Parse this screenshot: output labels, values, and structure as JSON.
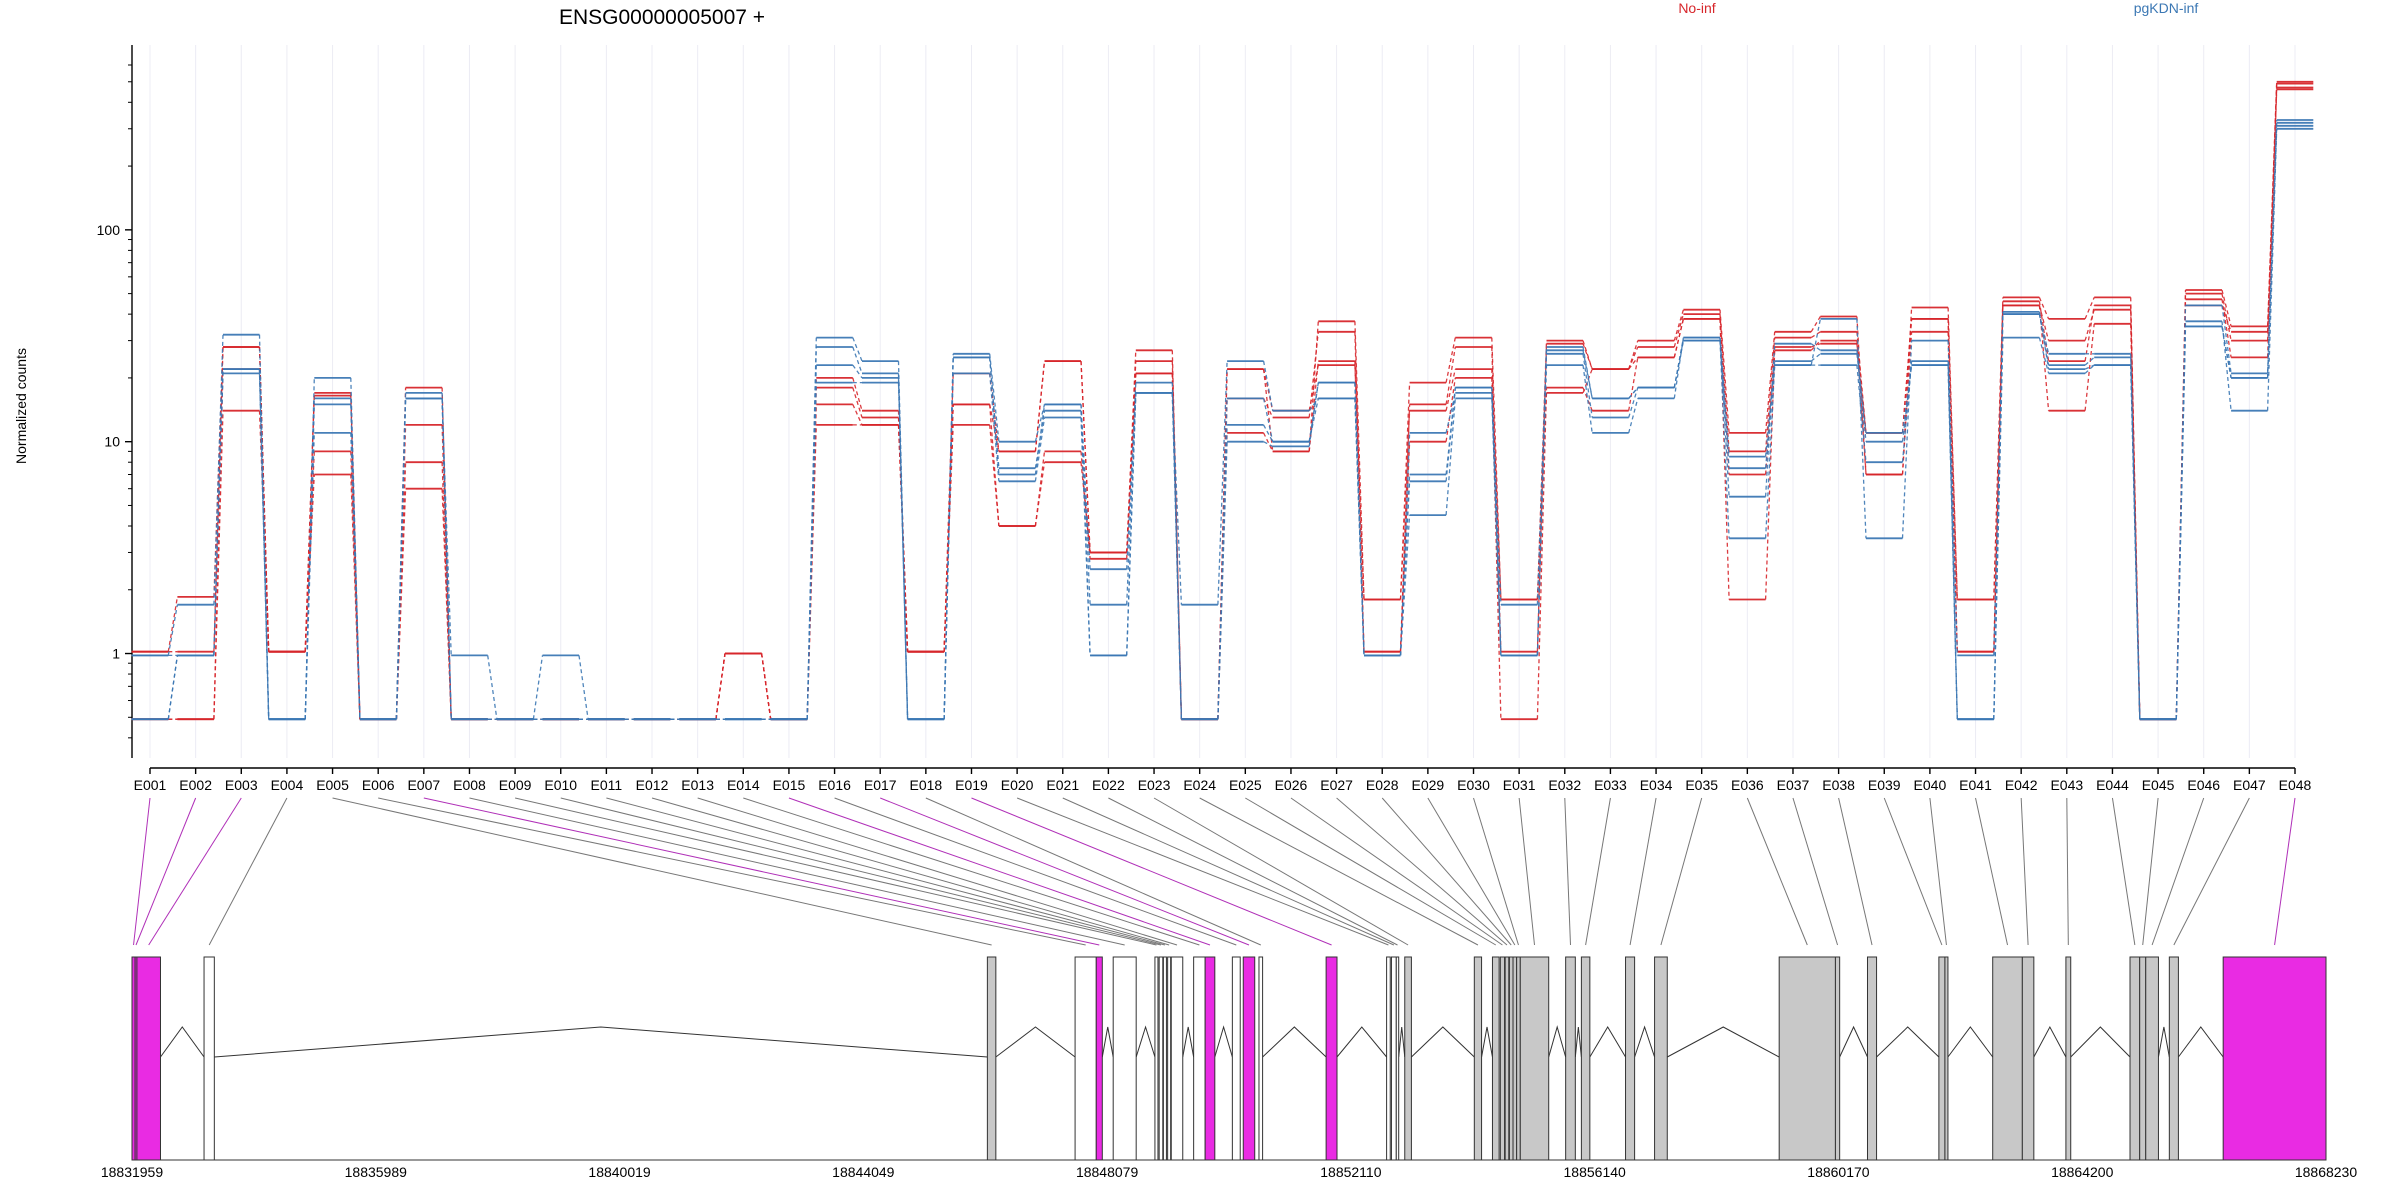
{
  "chart_data": {
    "type": "line",
    "title": "ENSG00000005007 +",
    "ylabel": "Normalized counts",
    "xlabel": "",
    "y_scale": "log",
    "y_ticks": [
      {
        "value": 1,
        "label": "1"
      },
      {
        "value": 10,
        "label": "10"
      },
      {
        "value": 100,
        "label": "100"
      }
    ],
    "ylim": [
      0.37,
      600
    ],
    "categories": [
      "E001",
      "E002",
      "E003",
      "E004",
      "E005",
      "E006",
      "E007",
      "E008",
      "E009",
      "E010",
      "E011",
      "E012",
      "E013",
      "E014",
      "E015",
      "E016",
      "E017",
      "E018",
      "E019",
      "E020",
      "E021",
      "E022",
      "E023",
      "E024",
      "E025",
      "E026",
      "E027",
      "E028",
      "E029",
      "E030",
      "E031",
      "E032",
      "E033",
      "E034",
      "E035",
      "E036",
      "E037",
      "E038",
      "E039",
      "E040",
      "E041",
      "E042",
      "E043",
      "E044",
      "E045",
      "E046",
      "E047",
      "E048"
    ],
    "zero_value": 0.49,
    "grid": true,
    "legend_position": "top",
    "series": [
      {
        "name": "No-inf",
        "group": "No-inf",
        "color": "#d7262b",
        "dash": true,
        "values": [
          1.02,
          1.02,
          28,
          1.02,
          16.5,
          0.49,
          18,
          0.49,
          0.49,
          0.49,
          0.49,
          0.49,
          0.49,
          1.0,
          0.49,
          20,
          14,
          1.02,
          15,
          4.0,
          8.0,
          3.0,
          24,
          0.49,
          22,
          9,
          37,
          1.8,
          19,
          31,
          1.8,
          30,
          22,
          30,
          42,
          11,
          33,
          39,
          7,
          43,
          1.8,
          48,
          38,
          48,
          0.49,
          52,
          35,
          490
        ]
      },
      {
        "name": "No-inf",
        "group": "No-inf",
        "color": "#d7262b",
        "dash": true,
        "values": [
          1.02,
          1.85,
          28,
          1.02,
          9,
          0.49,
          12,
          0.49,
          0.49,
          0.49,
          0.49,
          0.49,
          0.49,
          1.0,
          0.49,
          18,
          13,
          1.02,
          15,
          9,
          24,
          3.0,
          27,
          0.49,
          16,
          13,
          33,
          1.02,
          15,
          28,
          1.02,
          29,
          22,
          28,
          40,
          9,
          31,
          33,
          11,
          38,
          1.02,
          46,
          24,
          44,
          0.49,
          50,
          30,
          470
        ]
      },
      {
        "name": "No-inf",
        "group": "No-inf",
        "color": "#d7262b",
        "dash": true,
        "values": [
          0.49,
          0.49,
          14,
          1.02,
          7,
          0.49,
          6,
          0.49,
          0.49,
          0.49,
          0.49,
          0.49,
          0.49,
          1.0,
          0.49,
          15,
          12,
          1.02,
          12,
          4.0,
          9,
          2.8,
          21,
          0.49,
          11,
          9,
          24,
          1.02,
          10,
          20,
          0.49,
          18,
          14,
          25,
          38,
          1.8,
          27,
          30,
          7,
          33,
          1.02,
          44,
          14,
          36,
          0.49,
          47,
          25,
          460
        ]
      },
      {
        "name": "No-inf",
        "group": "No-inf",
        "color": "#d7262b",
        "dash": true,
        "values": [
          0.49,
          0.49,
          22,
          1.02,
          17,
          0.49,
          8,
          0.49,
          0.49,
          0.49,
          0.49,
          0.49,
          0.49,
          1.0,
          0.49,
          12,
          12,
          1.02,
          21,
          9,
          24,
          3.0,
          21,
          0.49,
          22,
          14,
          23,
          1.8,
          14,
          22,
          1.8,
          17,
          22,
          25,
          38,
          7,
          28,
          29,
          11,
          38,
          1.8,
          44,
          30,
          42,
          0.49,
          44,
          33,
          500
        ]
      },
      {
        "name": "pgKDN-inf",
        "group": "pgKDN-inf",
        "color": "#3c78b4",
        "dash": true,
        "values": [
          0.98,
          1.7,
          32,
          0.49,
          20,
          0.49,
          17,
          0.49,
          0.49,
          0.49,
          0.49,
          0.49,
          0.49,
          0.49,
          0.49,
          31,
          24,
          0.49,
          26,
          10,
          15,
          1.7,
          17,
          1.7,
          24,
          14,
          16,
          0.98,
          7,
          18,
          1.7,
          28,
          16,
          18,
          30,
          3.5,
          23,
          38,
          3.5,
          30,
          0.98,
          40,
          26,
          26,
          0.49,
          37,
          14,
          300
        ]
      },
      {
        "name": "pgKDN-inf",
        "group": "pgKDN-inf",
        "color": "#3c78b4",
        "dash": true,
        "values": [
          0.98,
          0.98,
          22,
          0.49,
          11,
          0.49,
          16,
          0.98,
          0.49,
          0.98,
          0.49,
          0.49,
          0.49,
          0.49,
          0.49,
          23,
          20,
          0.49,
          25,
          7,
          15,
          2.5,
          19,
          0.49,
          16,
          10,
          19,
          0.98,
          11,
          17,
          0.98,
          23,
          11,
          16,
          31,
          5.5,
          29,
          27,
          10,
          23,
          0.49,
          31,
          21,
          23,
          0.49,
          35,
          20,
          310
        ]
      },
      {
        "name": "pgKDN-inf",
        "group": "pgKDN-inf",
        "color": "#3c78b4",
        "dash": true,
        "values": [
          0.49,
          0.98,
          22,
          0.49,
          15,
          0.49,
          16,
          0.49,
          0.49,
          0.49,
          0.49,
          0.49,
          0.49,
          0.49,
          0.49,
          19,
          19,
          0.49,
          21,
          6.5,
          13,
          0.98,
          17,
          0.49,
          12,
          10,
          16,
          0.98,
          4.5,
          16,
          0.98,
          26,
          13,
          18,
          30,
          7.5,
          23,
          23,
          8,
          24,
          0.49,
          41,
          22,
          23,
          0.49,
          35,
          20,
          320
        ]
      },
      {
        "name": "pgKDN-inf",
        "group": "pgKDN-inf",
        "color": "#3c78b4",
        "dash": true,
        "values": [
          0.49,
          0.98,
          21,
          0.49,
          16,
          0.49,
          16,
          0.49,
          0.49,
          0.49,
          0.49,
          0.49,
          0.49,
          0.49,
          0.49,
          28,
          21,
          0.49,
          25,
          7.5,
          14,
          0.98,
          17,
          0.49,
          10,
          9.5,
          19,
          0.98,
          6.5,
          18,
          0.98,
          27,
          16,
          18,
          31,
          8.5,
          24,
          26,
          11,
          23,
          0.49,
          40,
          23,
          25,
          0.49,
          44,
          21,
          330
        ]
      }
    ],
    "legend": [
      {
        "name": "No-inf",
        "color": "#d7262b"
      },
      {
        "name": "pgKDN-inf",
        "color": "#3c78b4"
      }
    ],
    "gene_model": {
      "genomic_ticks": [
        "18831959",
        "18835989",
        "18840019",
        "18844049",
        "18848079",
        "18852110",
        "18856140",
        "18860170",
        "18864200",
        "18868230"
      ],
      "genomic_range": [
        18831959,
        18868230
      ],
      "exon_colors": {
        "normal": "#c8c8c8",
        "highlight": "#e92be3",
        "outline": "#333333",
        "blank": "#ffffff"
      },
      "exons": [
        {
          "id": "E001",
          "start": 18831959,
          "end": 18832010,
          "fill": "highlight"
        },
        {
          "id": "E002",
          "start": 18832010,
          "end": 18832040,
          "fill": "highlight"
        },
        {
          "id": "E003",
          "start": 18832040,
          "end": 18832430,
          "fill": "highlight"
        },
        {
          "id": "E004",
          "start": 18833150,
          "end": 18833320,
          "fill": "blank"
        },
        {
          "id": "E005",
          "start": 18846100,
          "end": 18846240,
          "fill": "normal"
        },
        {
          "id": "E006",
          "start": 18847550,
          "end": 18847900,
          "fill": "blank"
        },
        {
          "id": "E007",
          "start": 18847900,
          "end": 18848000,
          "fill": "highlight"
        },
        {
          "id": "E008",
          "start": 18848180,
          "end": 18848560,
          "fill": "blank"
        },
        {
          "id": "E009",
          "start": 18848870,
          "end": 18848920,
          "fill": "blank"
        },
        {
          "id": "E010",
          "start": 18848940,
          "end": 18849000,
          "fill": "blank"
        },
        {
          "id": "E011",
          "start": 18849010,
          "end": 18849060,
          "fill": "blank"
        },
        {
          "id": "E012",
          "start": 18849080,
          "end": 18849130,
          "fill": "blank"
        },
        {
          "id": "E013",
          "start": 18849140,
          "end": 18849330,
          "fill": "blank"
        },
        {
          "id": "E014",
          "start": 18849510,
          "end": 18849700,
          "fill": "blank"
        },
        {
          "id": "E015",
          "start": 18849700,
          "end": 18849860,
          "fill": "highlight"
        },
        {
          "id": "E016",
          "start": 18850150,
          "end": 18850280,
          "fill": "blank"
        },
        {
          "id": "E017",
          "start": 18850330,
          "end": 18850520,
          "fill": "highlight"
        },
        {
          "id": "E018",
          "start": 18850590,
          "end": 18850650,
          "fill": "blank"
        },
        {
          "id": "E019",
          "start": 18851700,
          "end": 18851880,
          "fill": "highlight"
        },
        {
          "id": "E020",
          "start": 18852700,
          "end": 18852760,
          "fill": "blank"
        },
        {
          "id": "E021",
          "start": 18852780,
          "end": 18852860,
          "fill": "blank"
        },
        {
          "id": "E022",
          "start": 18852860,
          "end": 18852900,
          "fill": "blank"
        },
        {
          "id": "E023",
          "start": 18853000,
          "end": 18853110,
          "fill": "normal"
        },
        {
          "id": "E024",
          "start": 18854150,
          "end": 18854270,
          "fill": "normal"
        },
        {
          "id": "E025",
          "start": 18854450,
          "end": 18854560,
          "fill": "normal"
        },
        {
          "id": "E026",
          "start": 18854580,
          "end": 18854650,
          "fill": "normal"
        },
        {
          "id": "E027",
          "start": 18854660,
          "end": 18854720,
          "fill": "normal"
        },
        {
          "id": "E028",
          "start": 18854730,
          "end": 18854790,
          "fill": "normal"
        },
        {
          "id": "E029",
          "start": 18854790,
          "end": 18854850,
          "fill": "normal"
        },
        {
          "id": "E030",
          "start": 18854850,
          "end": 18854910,
          "fill": "normal"
        },
        {
          "id": "E031",
          "start": 18854910,
          "end": 18855380,
          "fill": "normal"
        },
        {
          "id": "E032",
          "start": 18855660,
          "end": 18855820,
          "fill": "normal"
        },
        {
          "id": "E033",
          "start": 18855920,
          "end": 18856060,
          "fill": "normal"
        },
        {
          "id": "E034",
          "start": 18856650,
          "end": 18856800,
          "fill": "normal"
        },
        {
          "id": "E035",
          "start": 18857130,
          "end": 18857340,
          "fill": "normal"
        },
        {
          "id": "E036",
          "start": 18859190,
          "end": 18860120,
          "fill": "normal"
        },
        {
          "id": "E037",
          "start": 18860120,
          "end": 18860190,
          "fill": "normal"
        },
        {
          "id": "E038",
          "start": 18860650,
          "end": 18860800,
          "fill": "normal"
        },
        {
          "id": "E039",
          "start": 18861830,
          "end": 18861930,
          "fill": "normal"
        },
        {
          "id": "E040",
          "start": 18861930,
          "end": 18861980,
          "fill": "normal"
        },
        {
          "id": "E041",
          "start": 18862720,
          "end": 18863210,
          "fill": "normal"
        },
        {
          "id": "E042",
          "start": 18863210,
          "end": 18863400,
          "fill": "normal"
        },
        {
          "id": "E043",
          "start": 18863930,
          "end": 18864010,
          "fill": "normal"
        },
        {
          "id": "E044",
          "start": 18864990,
          "end": 18865150,
          "fill": "normal"
        },
        {
          "id": "E045",
          "start": 18865150,
          "end": 18865250,
          "fill": "normal"
        },
        {
          "id": "E046",
          "start": 18865250,
          "end": 18865460,
          "fill": "normal"
        },
        {
          "id": "E047",
          "start": 18865640,
          "end": 18865790,
          "fill": "normal"
        },
        {
          "id": "E048",
          "start": 18866530,
          "end": 18868230,
          "fill": "highlight"
        }
      ]
    }
  }
}
